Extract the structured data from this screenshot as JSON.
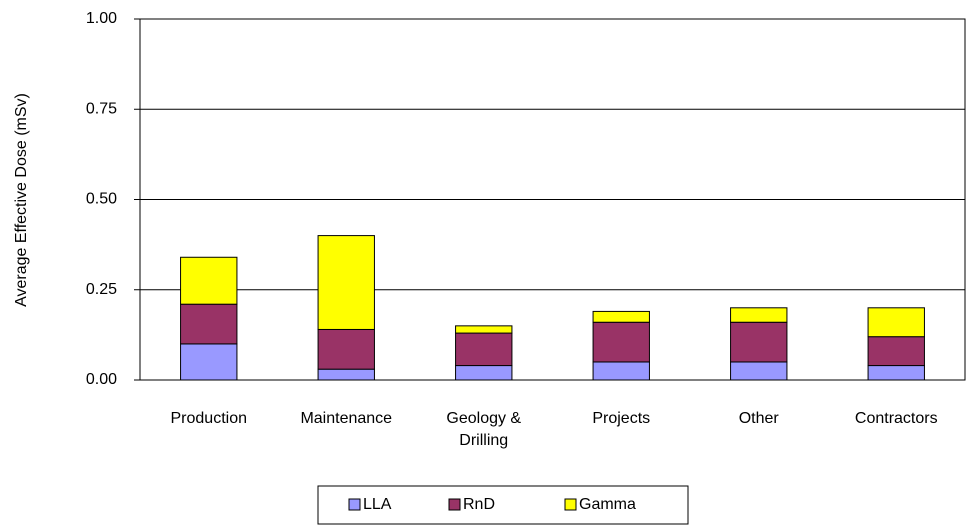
{
  "chart_data": {
    "type": "stacked-bar",
    "y_label": "Average Effective Dose (mSv)",
    "categories": [
      "Production",
      "Maintenance",
      "Geology & Drilling",
      "Projects",
      "Other",
      "Contractors"
    ],
    "series": [
      {
        "name": "LLA",
        "color": "#9999ff",
        "values": [
          0.1,
          0.03,
          0.04,
          0.05,
          0.05,
          0.04
        ]
      },
      {
        "name": "RnD",
        "color": "#993366",
        "values": [
          0.11,
          0.11,
          0.09,
          0.11,
          0.11,
          0.08
        ]
      },
      {
        "name": "Gamma",
        "color": "#ffff00",
        "values": [
          0.13,
          0.26,
          0.02,
          0.03,
          0.04,
          0.08
        ]
      }
    ],
    "ylim": [
      0,
      1
    ],
    "yticks": [
      {
        "value": 0,
        "label": "0.00"
      },
      {
        "value": 0.25,
        "label": "0.25"
      },
      {
        "value": 0.5,
        "label": "0.50"
      },
      {
        "value": 0.75,
        "label": "0.75"
      },
      {
        "value": 1,
        "label": "1.00"
      }
    ],
    "grid": true
  }
}
